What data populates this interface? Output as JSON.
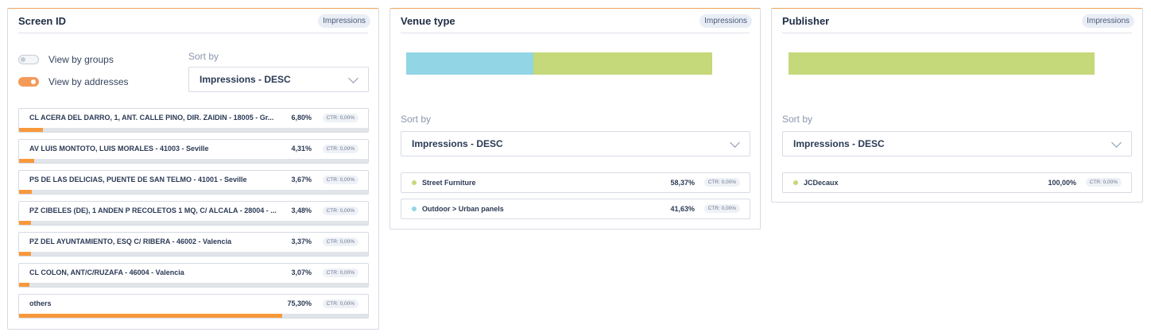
{
  "colors": {
    "accent": "#f7993b",
    "furniture": "#c5d87a",
    "urban": "#92d5e4"
  },
  "screen": {
    "title": "Screen ID",
    "badge": "Impressions",
    "toggle_groups": "View by groups",
    "toggle_addresses": "View by addresses",
    "sort_label": "Sort by",
    "sort_value": "Impressions - DESC",
    "rows": [
      {
        "label": "CL ACERA DEL DARRO, 1, ANT. CALLE PINO, DIR. ZAIDIN - 18005 - Gr...",
        "pct": "6,80%",
        "ctr": "CTR: 0,00%",
        "share": 6.8
      },
      {
        "label": "AV LUIS MONTOTO, LUIS MORALES - 41003 - Seville",
        "pct": "4,31%",
        "ctr": "CTR: 0,00%",
        "share": 4.31
      },
      {
        "label": "PS DE LAS DELICIAS, PUENTE DE SAN TELMO - 41001 - Seville",
        "pct": "3,67%",
        "ctr": "CTR: 0,00%",
        "share": 3.67
      },
      {
        "label": "PZ CIBELES (DE), 1 ANDEN P RECOLETOS 1 MQ, C/ ALCALA - 28004 - ...",
        "pct": "3,48%",
        "ctr": "CTR: 0,00%",
        "share": 3.48
      },
      {
        "label": "PZ DEL AYUNTAMIENTO, ESQ C/ RIBERA - 46002 - Valencia",
        "pct": "3,37%",
        "ctr": "CTR: 0,00%",
        "share": 3.37
      },
      {
        "label": "CL COLON, ANT/C/RUZAFA - 46004 - Valencia",
        "pct": "3,07%",
        "ctr": "CTR: 0,00%",
        "share": 3.07
      },
      {
        "label": "others",
        "pct": "75,30%",
        "ctr": "CTR: 0,00%",
        "share": 75.3
      }
    ]
  },
  "venue": {
    "title": "Venue type",
    "badge": "Impressions",
    "sort_label": "Sort by",
    "sort_value": "Impressions - DESC",
    "rows": [
      {
        "label": "Street Furniture",
        "pct": "58,37%",
        "ctr": "CTR: 0,00%",
        "share": 58.37,
        "color": "#c5d87a"
      },
      {
        "label": "Outdoor > Urban panels",
        "pct": "41,63%",
        "ctr": "CTR: 0,00%",
        "share": 41.63,
        "color": "#92d5e4"
      }
    ]
  },
  "publisher": {
    "title": "Publisher",
    "badge": "Impressions",
    "sort_label": "Sort by",
    "sort_value": "Impressions - DESC",
    "rows": [
      {
        "label": "JCDecaux",
        "pct": "100,00%",
        "ctr": "CTR: 0,00%",
        "share": 100,
        "color": "#c5d87a"
      }
    ]
  }
}
